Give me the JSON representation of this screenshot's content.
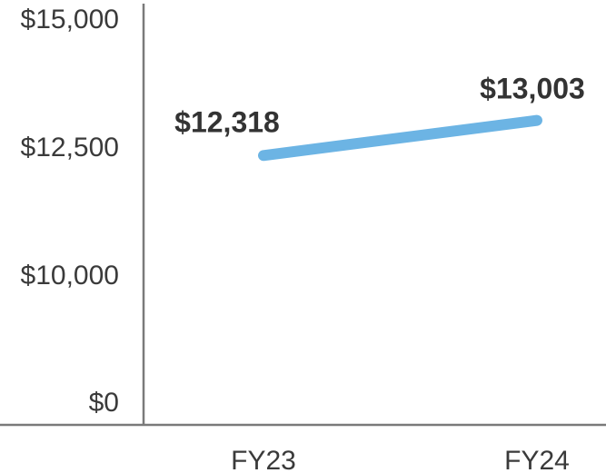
{
  "chart_data": {
    "type": "line",
    "title": "",
    "xlabel": "",
    "ylabel": "",
    "categories": [
      "FY23",
      "FY24"
    ],
    "series": [
      {
        "values": [
          12318,
          13003
        ],
        "data_labels": [
          "$12,318",
          "$13,003"
        ],
        "color": "#6cb4e4"
      }
    ],
    "y_ticks": [
      {
        "value": 0,
        "label": "$0"
      },
      {
        "value": 10000,
        "label": "$10,000"
      },
      {
        "value": 12500,
        "label": "$12,500"
      },
      {
        "value": 15000,
        "label": "$15,000"
      }
    ],
    "y_axis_break": true,
    "ylim": [
      0,
      15000
    ],
    "grid": false,
    "legend": "none",
    "colors": {
      "axis": "#7a7a7a",
      "text": "#3a3a3a",
      "label": "#333333"
    }
  }
}
